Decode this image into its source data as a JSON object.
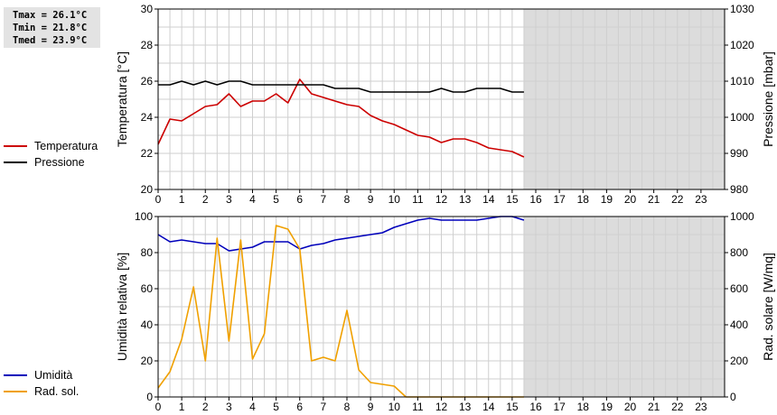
{
  "stats": {
    "tmax": "Tmax = 26.1°C",
    "tmin": "Tmin = 21.8°C",
    "tmed": "Tmed = 23.9°C"
  },
  "chart_data": [
    {
      "type": "line",
      "x_ticks": [
        "0",
        "1",
        "2",
        "3",
        "4",
        "5",
        "6",
        "7",
        "8",
        "9",
        "10",
        "11",
        "12",
        "13",
        "14",
        "15",
        "16",
        "17",
        "18",
        "19",
        "20",
        "21",
        "22",
        "23"
      ],
      "xlim": [
        0,
        24
      ],
      "ylabel": "Temperatura [°C]",
      "ylim": [
        20,
        30
      ],
      "y_ticks": [
        "20",
        "22",
        "24",
        "26",
        "28",
        "30"
      ],
      "y2label": "Pressione [mbar]",
      "y2lim": [
        980,
        1030
      ],
      "y2_ticks": [
        "980",
        "990",
        "1000",
        "1010",
        "1020",
        "1030"
      ],
      "data_until": 15.5,
      "grid": true,
      "series": [
        {
          "name": "Temperatura",
          "color": "#cc0000",
          "axis": "left",
          "x": [
            0,
            0.5,
            1,
            1.5,
            2,
            2.5,
            3,
            3.5,
            4,
            4.5,
            5,
            5.5,
            6,
            6.5,
            7,
            7.5,
            8,
            8.5,
            9,
            9.5,
            10,
            10.5,
            11,
            11.5,
            12,
            12.5,
            13,
            13.5,
            14,
            14.5,
            15,
            15.5
          ],
          "values": [
            22.5,
            23.9,
            23.8,
            24.2,
            24.6,
            24.7,
            25.3,
            24.6,
            24.9,
            24.9,
            25.3,
            24.8,
            26.1,
            25.3,
            25.1,
            24.9,
            24.7,
            24.6,
            24.1,
            23.8,
            23.6,
            23.3,
            23.0,
            22.9,
            22.6,
            22.8,
            22.8,
            22.6,
            22.3,
            22.2,
            22.1,
            21.8
          ]
        },
        {
          "name": "Pressione",
          "color": "#000000",
          "axis": "right",
          "x": [
            0,
            0.5,
            1,
            1.5,
            2,
            2.5,
            3,
            3.5,
            4,
            4.5,
            5,
            5.5,
            6,
            6.5,
            7,
            7.5,
            8,
            8.5,
            9,
            9.5,
            10,
            10.5,
            11,
            11.5,
            12,
            12.5,
            13,
            13.5,
            14,
            14.5,
            15,
            15.5
          ],
          "values": [
            1009,
            1009,
            1010,
            1009,
            1010,
            1009,
            1010,
            1010,
            1009,
            1009,
            1009,
            1009,
            1009,
            1009,
            1009,
            1008,
            1008,
            1008,
            1007,
            1007,
            1007,
            1007,
            1007,
            1007,
            1008,
            1007,
            1007,
            1008,
            1008,
            1008,
            1007,
            1007
          ]
        }
      ]
    },
    {
      "type": "line",
      "x_ticks": [
        "0",
        "1",
        "2",
        "3",
        "4",
        "5",
        "6",
        "7",
        "8",
        "9",
        "10",
        "11",
        "12",
        "13",
        "14",
        "15",
        "16",
        "17",
        "18",
        "19",
        "20",
        "21",
        "22",
        "23"
      ],
      "xlim": [
        0,
        24
      ],
      "ylabel": "Umidità relativa [%]",
      "ylim": [
        0,
        100
      ],
      "y_ticks": [
        "0",
        "20",
        "40",
        "60",
        "80",
        "100"
      ],
      "y2label": "Rad. solare [W/mq]",
      "y2lim": [
        0,
        1000
      ],
      "y2_ticks": [
        "0",
        "200",
        "400",
        "600",
        "800",
        "1000"
      ],
      "data_until": 15.5,
      "grid": true,
      "series": [
        {
          "name": "Umidità",
          "color": "#0000bb",
          "axis": "left",
          "x": [
            0,
            0.5,
            1,
            1.5,
            2,
            2.5,
            3,
            3.5,
            4,
            4.5,
            5,
            5.5,
            6,
            6.5,
            7,
            7.5,
            8,
            8.5,
            9,
            9.5,
            10,
            10.5,
            11,
            11.5,
            12,
            12.5,
            13,
            13.5,
            14,
            14.5,
            15,
            15.5
          ],
          "values": [
            90,
            86,
            87,
            86,
            85,
            85,
            81,
            82,
            83,
            86,
            86,
            86,
            82,
            84,
            85,
            87,
            88,
            89,
            90,
            91,
            94,
            96,
            98,
            99,
            98,
            98,
            98,
            98,
            99,
            100,
            100,
            98
          ]
        },
        {
          "name": "Rad. sol.",
          "color": "#f0a000",
          "axis": "right",
          "x": [
            0,
            0.5,
            1,
            1.5,
            2,
            2.5,
            3,
            3.5,
            4,
            4.5,
            5,
            5.5,
            6,
            6.5,
            7,
            7.5,
            8,
            8.5,
            9,
            9.5,
            10,
            10.5,
            11,
            11.5,
            12,
            12.5,
            13,
            13.5,
            14,
            14.5,
            15,
            15.5
          ],
          "values": [
            50,
            140,
            320,
            610,
            200,
            880,
            310,
            870,
            210,
            350,
            950,
            930,
            820,
            200,
            220,
            200,
            480,
            150,
            80,
            70,
            60,
            0,
            0,
            0,
            0,
            0,
            0,
            0,
            0,
            0,
            0,
            0
          ]
        }
      ]
    }
  ]
}
